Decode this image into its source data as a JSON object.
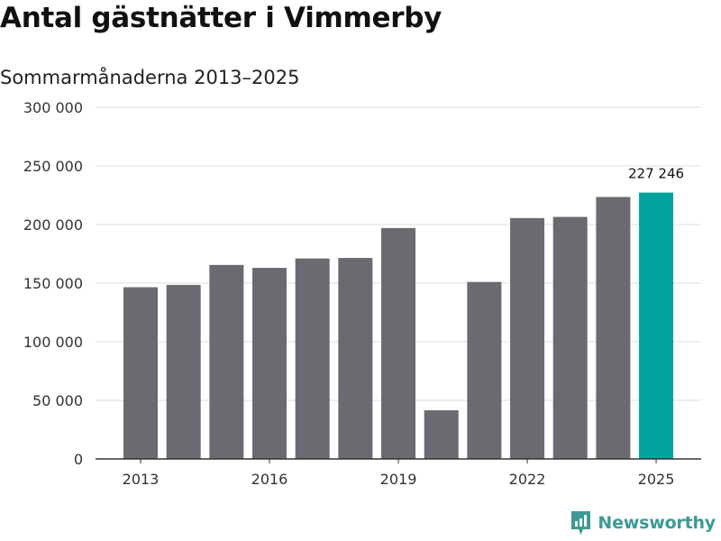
{
  "title": "Antal gästnätter i Vimmerby",
  "subtitle": "Sommarmånaderna 2013–2025",
  "brand": {
    "name": "Newsworthy",
    "color": "#3d9a94"
  },
  "colors": {
    "bar": "#6b6a70",
    "highlight": "#00a39b",
    "grid": "#dddddd",
    "axis": "#333333"
  },
  "chart_data": {
    "type": "bar",
    "categories": [
      "2013",
      "2014",
      "2015",
      "2016",
      "2017",
      "2018",
      "2019",
      "2020",
      "2021",
      "2022",
      "2023",
      "2024",
      "2025"
    ],
    "values": [
      146500,
      148500,
      165500,
      163000,
      171000,
      171500,
      197000,
      41500,
      151000,
      205500,
      206500,
      223500,
      227246
    ],
    "highlight_index": 12,
    "highlight_label": "227 246",
    "x_tick_labels": [
      "2013",
      "2016",
      "2019",
      "2022",
      "2025"
    ],
    "y_ticks": [
      0,
      50000,
      100000,
      150000,
      200000,
      250000,
      300000
    ],
    "y_tick_labels": [
      "0",
      "50 000",
      "100 000",
      "150 000",
      "200 000",
      "250 000",
      "300 000"
    ],
    "ylim": [
      0,
      300000
    ],
    "grid": true,
    "xlabel": "",
    "ylabel": ""
  }
}
